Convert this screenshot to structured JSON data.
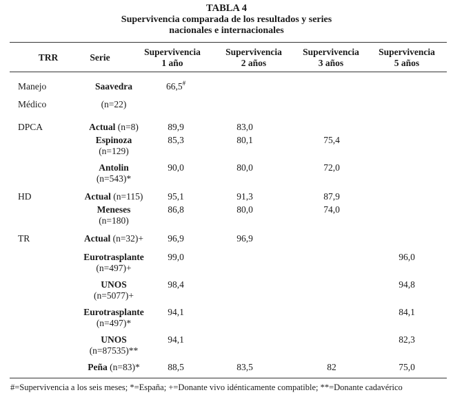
{
  "title": "TABLA 4",
  "subtitle_line1": "Supervivencia comparada de los resultados y series",
  "subtitle_line2": "nacionales e internacionales",
  "columns": {
    "trr": "TRR",
    "serie": "Serie",
    "s1": [
      "Supervivencia",
      "1 año"
    ],
    "s2": [
      "Supervivencia",
      "2 años"
    ],
    "s3": [
      "Supervivencia",
      "3 años"
    ],
    "s5": [
      "Supervivencia",
      "5 años"
    ]
  },
  "groups": {
    "manejo": "Manejo",
    "medico": "Médico",
    "dpca": "DPCA",
    "hd": "HD",
    "tr": "TR"
  },
  "rows": [
    {
      "serie": "Saavedra",
      "n": "",
      "n2": "",
      "v1": "66,5",
      "v1sup": "#",
      "v2": "",
      "v3": "",
      "v5": ""
    },
    {
      "serie": "",
      "n": "",
      "n2": "(n=22)",
      "v1": "",
      "v2": "",
      "v3": "",
      "v5": ""
    },
    {
      "serie": "Actual",
      "n": " (n=8)",
      "n2": "",
      "v1": "89,9",
      "v2": "83,0",
      "v3": "",
      "v5": ""
    },
    {
      "serie": "Espinoza",
      "n": "",
      "n2": "(n=129)",
      "v1": "85,3",
      "v2": "80,1",
      "v3": "75,4",
      "v5": ""
    },
    {
      "serie": "Antolin",
      "n": "",
      "n2": "(n=543)*",
      "v1": "90,0",
      "v2": "80,0",
      "v3": "72,0",
      "v5": ""
    },
    {
      "serie": "Actual",
      "n": " (n=115)",
      "n2": "",
      "v1": "95,1",
      "v2": "91,3",
      "v3": "87,9",
      "v5": ""
    },
    {
      "serie": "Meneses",
      "n": "",
      "n2": "(n=180)",
      "v1": "86,8",
      "v2": "80,0",
      "v3": "74,0",
      "v5": ""
    },
    {
      "serie": "Actual",
      "n": " (n=32)+",
      "n2": "",
      "v1": "96,9",
      "v2": "96,9",
      "v3": "",
      "v5": ""
    },
    {
      "serie": "Eurotrasplante",
      "n": "",
      "n2": "(n=497)+",
      "v1": "99,0",
      "v2": "",
      "v3": "",
      "v5": "96,0"
    },
    {
      "serie": "UNOS",
      "n": "",
      "n2": "(n=5077)+",
      "v1": "98,4",
      "v2": "",
      "v3": "",
      "v5": "94,8"
    },
    {
      "serie": "Eurotrasplante",
      "n": "",
      "n2": "(n=497)*",
      "v1": "94,1",
      "v2": "",
      "v3": "",
      "v5": "84,1"
    },
    {
      "serie": "UNOS",
      "n": "",
      "n2": "(n=87535)**",
      "v1": "94,1",
      "v2": "",
      "v3": "",
      "v5": "82,3"
    },
    {
      "serie": "Peña",
      "n": " (n=83)*",
      "n2": "",
      "v1": "88,5",
      "v2": "83,5",
      "v3": "82",
      "v5": "75,0"
    }
  ],
  "footnote": "#=Supervivencia a los seis meses; *=España; +=Donante vivo idénticamente compatible; **=Donante cadavérico"
}
